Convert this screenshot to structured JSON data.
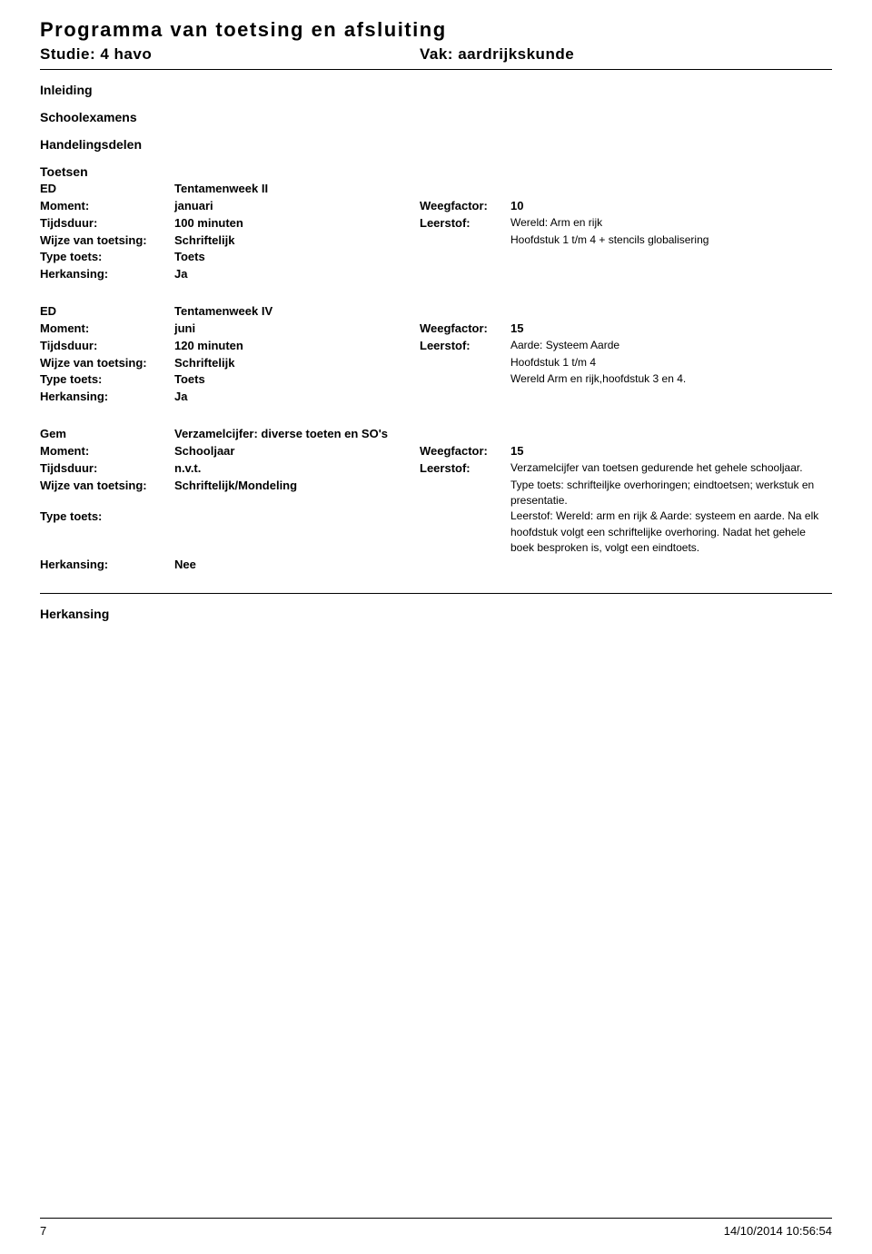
{
  "title": "Programma van toetsing en afsluiting",
  "studie_label": "Studie:",
  "studie_value": "4 havo",
  "vak_label": "Vak:",
  "vak_value": "aardrijkskunde",
  "headings": {
    "inleiding": "Inleiding",
    "schoolexamens": "Schoolexamens",
    "handelingsdelen": "Handelingsdelen",
    "toetsen": "Toetsen",
    "herkansing": "Herkansing"
  },
  "labels": {
    "moment": "Moment:",
    "tijdsduur": "Tijdsduur:",
    "wijze": "Wijze van toetsing:",
    "type": "Type toets:",
    "herkansing": "Herkansing:",
    "weegfactor": "Weegfactor:",
    "leerstof": "Leerstof:"
  },
  "blocks": [
    {
      "code": "ED",
      "name": "Tentamenweek II",
      "moment": "januari",
      "weegfactor": "10",
      "tijdsduur": "100 minuten",
      "wijze": "Schriftelijk",
      "type": "Toets",
      "herkansing": "Ja",
      "leerstof": "Wereld: Arm en rijk\nHoofdstuk 1 t/m 4 + stencils globalisering"
    },
    {
      "code": "ED",
      "name": "Tentamenweek IV",
      "moment": "juni",
      "weegfactor": "15",
      "tijdsduur": "120 minuten",
      "wijze": "Schriftelijk",
      "type": "Toets",
      "herkansing": "Ja",
      "leerstof": "Aarde: Systeem Aarde\nHoofdstuk 1 t/m 4\nWereld Arm en rijk,hoofdstuk 3 en 4."
    },
    {
      "code": "Gem",
      "name": "Verzamelcijfer: diverse toeten en SO's",
      "moment": "Schooljaar",
      "weegfactor": "15",
      "tijdsduur": "n.v.t.",
      "wijze": "Schriftelijk/Mondeling",
      "type": "",
      "herkansing": "Nee",
      "leerstof": "Verzamelcijfer van toetsen gedurende het gehele schooljaar.\nType toets: schrifteiljke overhoringen; eindtoetsen; werkstuk en presentatie.\nLeerstof: Wereld: arm en rijk & Aarde: systeem en aarde. Na elk hoofdstuk volgt een schriftelijke overhoring. Nadat het gehele boek besproken is, volgt een eindtoets."
    }
  ],
  "footer": {
    "page": "7",
    "timestamp": "14/10/2014 10:56:54"
  }
}
